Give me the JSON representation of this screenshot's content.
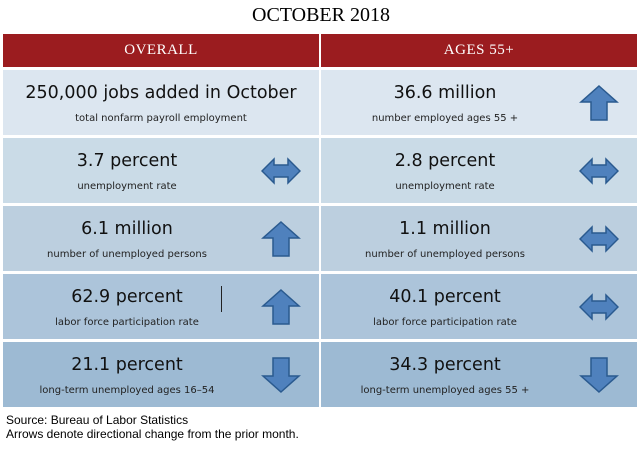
{
  "title": "OCTOBER 2018",
  "colors": {
    "header_bg": "#9b1c1f",
    "arrow_fill": "#4f81bd",
    "arrow_stroke": "#2a5a8f"
  },
  "overall": {
    "header": "OVERALL",
    "rows": [
      {
        "main": "250,000 jobs added in October",
        "sub": "total nonfarm payroll employment",
        "arrow": "none"
      },
      {
        "main": "3.7 percent",
        "sub": "unemployment rate",
        "arrow": "both"
      },
      {
        "main": "6.1 million",
        "sub": "number of unemployed persons",
        "arrow": "up"
      },
      {
        "main": "62.9 percent",
        "sub": "labor force participation rate",
        "arrow": "up"
      },
      {
        "main": "21.1 percent",
        "sub": "long-term unemployed ages 16–54",
        "arrow": "down"
      }
    ]
  },
  "ages55": {
    "header": "AGES 55+",
    "rows": [
      {
        "main": "36.6 million",
        "sub": "number employed ages 55 +",
        "arrow": "up"
      },
      {
        "main": "2.8 percent",
        "sub": "unemployment rate",
        "arrow": "both"
      },
      {
        "main": "1.1 million",
        "sub": "number of unemployed persons",
        "arrow": "both"
      },
      {
        "main": "40.1 percent",
        "sub": "labor force participation rate",
        "arrow": "both"
      },
      {
        "main": "34.3 percent",
        "sub": "long-term unemployed ages 55 +",
        "arrow": "down"
      }
    ]
  },
  "footer": {
    "source": "Source: Bureau of Labor Statistics",
    "note": "Arrows denote directional change from the prior month."
  }
}
